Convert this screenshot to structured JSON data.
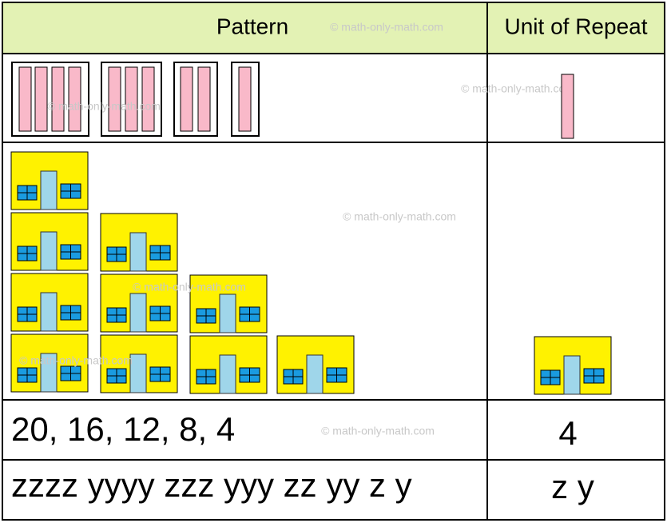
{
  "table": {
    "header": [
      "Pattern",
      "Unit of Repeat"
    ],
    "rows": [
      [
        "20, 16, 12, 8, 4",
        "4"
      ],
      [
        "zzzz yyyy zzz yyy zz yy z y",
        "z y"
      ]
    ]
  },
  "watermark": "© math-only-math.com"
}
